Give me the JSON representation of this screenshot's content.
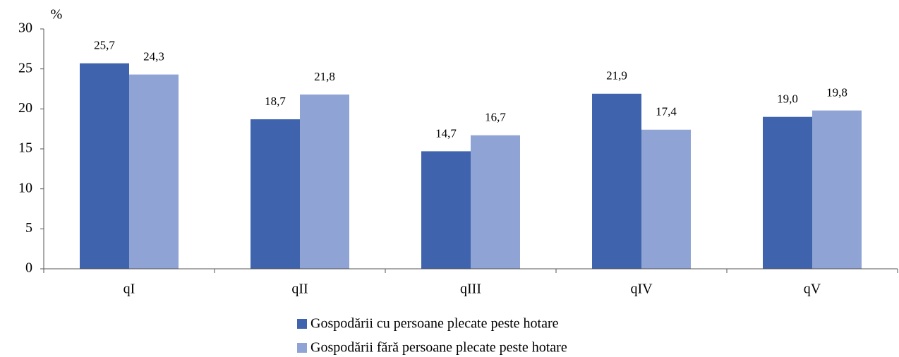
{
  "chart_data": {
    "type": "bar",
    "y_label": "%",
    "categories": [
      "qI",
      "qII",
      "qIII",
      "qIV",
      "qV"
    ],
    "series": [
      {
        "name": "Gospodării cu persoane plecate peste hotare",
        "color": "#3f64ad",
        "values": [
          25.7,
          18.7,
          14.7,
          21.9,
          19.0
        ],
        "value_labels": [
          "25,7",
          "18,7",
          "14,7",
          "21,9",
          "19,0"
        ]
      },
      {
        "name": "Gospodării fără persoane plecate peste hotare",
        "color": "#8fa4d5",
        "values": [
          24.3,
          21.8,
          16.7,
          17.4,
          19.8
        ],
        "value_labels": [
          "24,3",
          "21,8",
          "16,7",
          "17,4",
          "19,8"
        ]
      }
    ],
    "ylim": [
      0,
      30
    ],
    "yticks": [
      0,
      5,
      10,
      15,
      20,
      25,
      30
    ],
    "legend": "bottom"
  }
}
